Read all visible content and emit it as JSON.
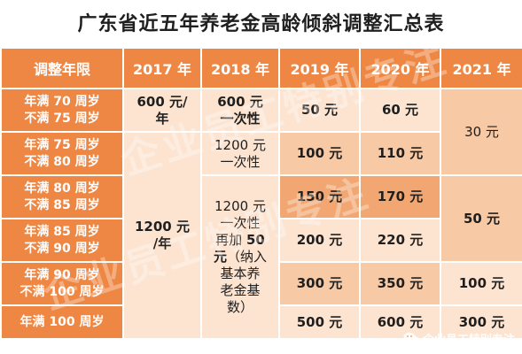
{
  "title": "广东省近五年养老金高龄倾斜调整汇总表",
  "header": {
    "age_col": "调整年限",
    "years": [
      "2017 年",
      "2018 年",
      "2019 年",
      "2020 年",
      "2021 年"
    ]
  },
  "rows": [
    {
      "age_line1": "年满 70 周岁",
      "age_line2": "不满 75 周岁"
    },
    {
      "age_line1": "年满 75 周岁",
      "age_line2": "不满 80 周岁"
    },
    {
      "age_line1": "年满 80 周岁",
      "age_line2": "不满 85 周岁"
    },
    {
      "age_line1": "年满 85 周岁",
      "age_line2": "不满 90 周岁"
    },
    {
      "age_line1": "年满 90 周岁",
      "age_line2": "不满 100 周岁"
    },
    {
      "age_line1": "年满 100 周岁",
      "age_line2": ""
    }
  ],
  "y2017": {
    "group1": {
      "line1": "600 元/",
      "line2": "年"
    },
    "group2": {
      "line1": "1200 元",
      "line2": "/年"
    }
  },
  "y2018": {
    "group1": {
      "line1": "600 元",
      "line2": "一次性"
    },
    "group2": {
      "line1": "1200 元",
      "line2": "一次性"
    },
    "group3": {
      "line1": "1200 元",
      "line2": "一次性",
      "line3_a": "再加 ",
      "line3_b": "50",
      "line4_a": "元",
      "line4_b": "（纳入",
      "line5": "基本养",
      "line6": "老金基",
      "line7": "数）"
    }
  },
  "y2019": [
    "50 元",
    "100 元",
    "150 元",
    "200 元",
    "300 元",
    "500 元"
  ],
  "y2020": [
    "60 元",
    "110 元",
    "170 元",
    "220 元",
    "350 元",
    "600 元"
  ],
  "y2021": {
    "group1": "30 元",
    "group2": "50 元",
    "row5": "100 元",
    "row6": "300 元"
  },
  "watermark": "企业员工特别专注",
  "logo_text": "企业员工特别专注",
  "colors": {
    "header": "#ee8743",
    "light": "#fde4d1",
    "mid": "#f7c9a5",
    "dark": "#f2a772"
  }
}
